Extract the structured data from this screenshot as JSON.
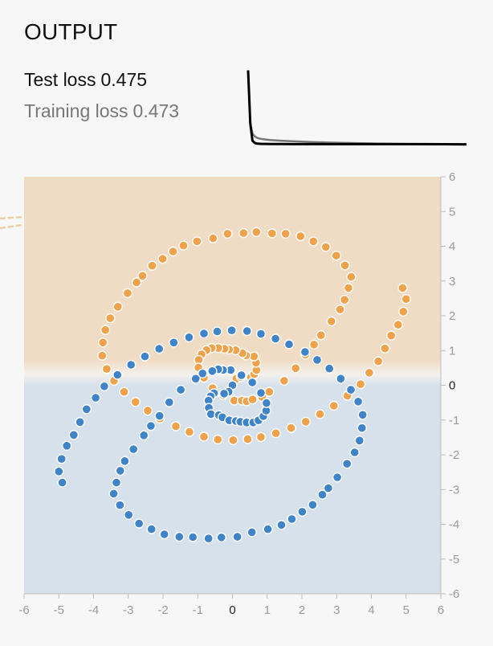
{
  "output": {
    "title": "OUTPUT",
    "test_loss_label": "Test loss",
    "test_loss_value": "0.475",
    "training_loss_label": "Training loss",
    "training_loss_value": "0.473"
  },
  "colors": {
    "orange_point": "#f0a24b",
    "blue_point": "#3f84c8",
    "orange_region": "#f0dcc5",
    "blue_region": "#d6e1ec",
    "test_loss_line": "#000000",
    "train_loss_line": "#777777"
  },
  "chart_data": [
    {
      "type": "line",
      "title": "",
      "x": [
        0,
        1,
        2,
        3,
        4,
        5,
        6,
        8,
        10,
        15,
        20,
        30,
        40,
        60,
        80,
        100
      ],
      "series": [
        {
          "name": "Test loss",
          "values": [
            0.98,
            0.62,
            0.5,
            0.485,
            0.48,
            0.479,
            0.478,
            0.478,
            0.477,
            0.477,
            0.476,
            0.476,
            0.476,
            0.476,
            0.476,
            0.475
          ]
        },
        {
          "name": "Training loss",
          "values": [
            0.98,
            0.62,
            0.55,
            0.53,
            0.52,
            0.515,
            0.512,
            0.508,
            0.505,
            0.5,
            0.496,
            0.49,
            0.486,
            0.48,
            0.476,
            0.473
          ]
        }
      ],
      "ylim": [
        0.44,
        1.0
      ]
    },
    {
      "type": "scatter",
      "title": "",
      "xlabel": "",
      "ylabel": "",
      "xlim": [
        -6,
        6
      ],
      "ylim": [
        -6,
        6
      ],
      "x_ticks": [
        -6,
        -5,
        -4,
        -3,
        -2,
        -1,
        0,
        1,
        2,
        3,
        4,
        5,
        6
      ],
      "y_ticks": [
        6,
        5,
        4,
        3,
        2,
        1,
        0,
        -1,
        -2,
        -3,
        -4,
        -5,
        -6
      ],
      "regions": [
        {
          "class": "orange",
          "y_range": [
            0.2,
            6
          ]
        },
        {
          "class": "blue",
          "y_range": [
            -6,
            0.2
          ]
        }
      ],
      "series": [
        {
          "class": "orange",
          "x": [
            0.0,
            0.11,
            0.24,
            0.53,
            0.63,
            0.69,
            0.68,
            0.62,
            0.39,
            0.29,
            0.09,
            -0.1,
            -0.23,
            -0.41,
            -0.6,
            -0.75,
            -0.89,
            -0.97,
            -0.98,
            -0.82,
            -0.57,
            -0.26,
            0.05,
            0.27,
            0.41,
            0.58,
            0.86,
            1.06,
            1.49,
            1.82,
            2.1,
            2.35,
            2.55,
            2.85,
            3.1,
            3.23,
            3.34,
            3.42,
            3.24,
            2.99,
            2.69,
            2.33,
            1.96,
            1.53,
            1.14,
            0.69,
            0.32,
            -0.14,
            -0.56,
            -1.02,
            -1.41,
            -1.71,
            -2.01,
            -2.31,
            -2.59,
            -2.76,
            -3.02,
            -3.3,
            -3.52,
            -3.66,
            -3.73,
            -3.75,
            -3.62,
            -3.41,
            -3.12,
            -2.79,
            -2.44,
            -2.09,
            -1.63,
            -1.24,
            -0.82,
            -0.42,
            0.02,
            0.44,
            0.82,
            1.25,
            1.69,
            2.11,
            2.52,
            2.92,
            3.31,
            3.69,
            3.94,
            4.2,
            4.39,
            4.57,
            4.77,
            4.92,
            5.0,
            4.9
          ],
          "y": [
            0.0,
            0.19,
            0.24,
            0.23,
            0.32,
            0.44,
            0.65,
            0.83,
            0.86,
            0.92,
            1.01,
            1.03,
            1.05,
            1.07,
            1.07,
            1.01,
            0.89,
            0.73,
            0.51,
            0.22,
            -0.08,
            -0.29,
            -0.44,
            -0.44,
            -0.46,
            -0.41,
            -0.34,
            -0.19,
            0.13,
            0.49,
            0.88,
            1.17,
            1.44,
            1.84,
            2.18,
            2.46,
            2.8,
            3.12,
            3.45,
            3.73,
            3.98,
            4.14,
            4.29,
            4.36,
            4.37,
            4.41,
            4.38,
            4.36,
            4.23,
            4.14,
            4.02,
            3.85,
            3.64,
            3.44,
            3.15,
            2.96,
            2.65,
            2.26,
            1.93,
            1.59,
            1.23,
            0.85,
            0.47,
            0.13,
            -0.19,
            -0.48,
            -0.73,
            -0.96,
            -1.18,
            -1.34,
            -1.48,
            -1.56,
            -1.58,
            -1.55,
            -1.49,
            -1.38,
            -1.23,
            -1.05,
            -0.83,
            -0.59,
            -0.3,
            0.03,
            0.36,
            0.69,
            1.06,
            1.43,
            1.74,
            2.12,
            2.48,
            2.8
          ]
        },
        {
          "class": "blue",
          "x": [
            0.0,
            -0.11,
            -0.24,
            -0.53,
            -0.63,
            -0.69,
            -0.68,
            -0.62,
            -0.39,
            -0.29,
            -0.09,
            0.1,
            0.23,
            0.41,
            0.6,
            0.75,
            0.89,
            0.97,
            0.98,
            0.82,
            0.57,
            0.26,
            -0.05,
            -0.27,
            -0.41,
            -0.58,
            -0.86,
            -1.06,
            -1.49,
            -1.82,
            -2.1,
            -2.35,
            -2.55,
            -2.85,
            -3.1,
            -3.23,
            -3.34,
            -3.42,
            -3.24,
            -2.99,
            -2.69,
            -2.33,
            -1.96,
            -1.53,
            -1.14,
            -0.69,
            -0.32,
            0.14,
            0.56,
            1.02,
            1.41,
            1.71,
            2.01,
            2.31,
            2.59,
            2.76,
            3.02,
            3.3,
            3.52,
            3.66,
            3.73,
            3.75,
            3.62,
            3.41,
            3.12,
            2.79,
            2.44,
            2.09,
            1.63,
            1.24,
            0.82,
            0.42,
            -0.02,
            -0.44,
            -0.82,
            -1.25,
            -1.69,
            -2.11,
            -2.52,
            -2.92,
            -3.31,
            -3.69,
            -3.94,
            -4.2,
            -4.39,
            -4.57,
            -4.77,
            -4.92,
            -5.0,
            -4.9
          ],
          "y": [
            0.0,
            -0.19,
            -0.24,
            -0.23,
            -0.32,
            -0.44,
            -0.65,
            -0.83,
            -0.86,
            -0.92,
            -1.01,
            -1.03,
            -1.05,
            -1.07,
            -1.07,
            -1.01,
            -0.89,
            -0.73,
            -0.51,
            -0.22,
            0.08,
            0.29,
            0.44,
            0.44,
            0.46,
            0.41,
            0.34,
            0.19,
            -0.13,
            -0.49,
            -0.88,
            -1.17,
            -1.44,
            -1.84,
            -2.18,
            -2.46,
            -2.8,
            -3.12,
            -3.45,
            -3.73,
            -3.98,
            -4.14,
            -4.29,
            -4.36,
            -4.37,
            -4.41,
            -4.38,
            -4.36,
            -4.23,
            -4.14,
            -4.02,
            -3.85,
            -3.64,
            -3.44,
            -3.15,
            -2.96,
            -2.65,
            -2.26,
            -1.93,
            -1.59,
            -1.23,
            -0.85,
            -0.47,
            -0.13,
            0.19,
            0.48,
            0.73,
            0.96,
            1.18,
            1.34,
            1.48,
            1.56,
            1.58,
            1.55,
            1.49,
            1.38,
            1.23,
            1.05,
            0.83,
            0.59,
            0.3,
            -0.03,
            -0.36,
            -0.69,
            -1.06,
            -1.43,
            -1.74,
            -2.12,
            -2.48,
            -2.8
          ]
        }
      ]
    }
  ]
}
